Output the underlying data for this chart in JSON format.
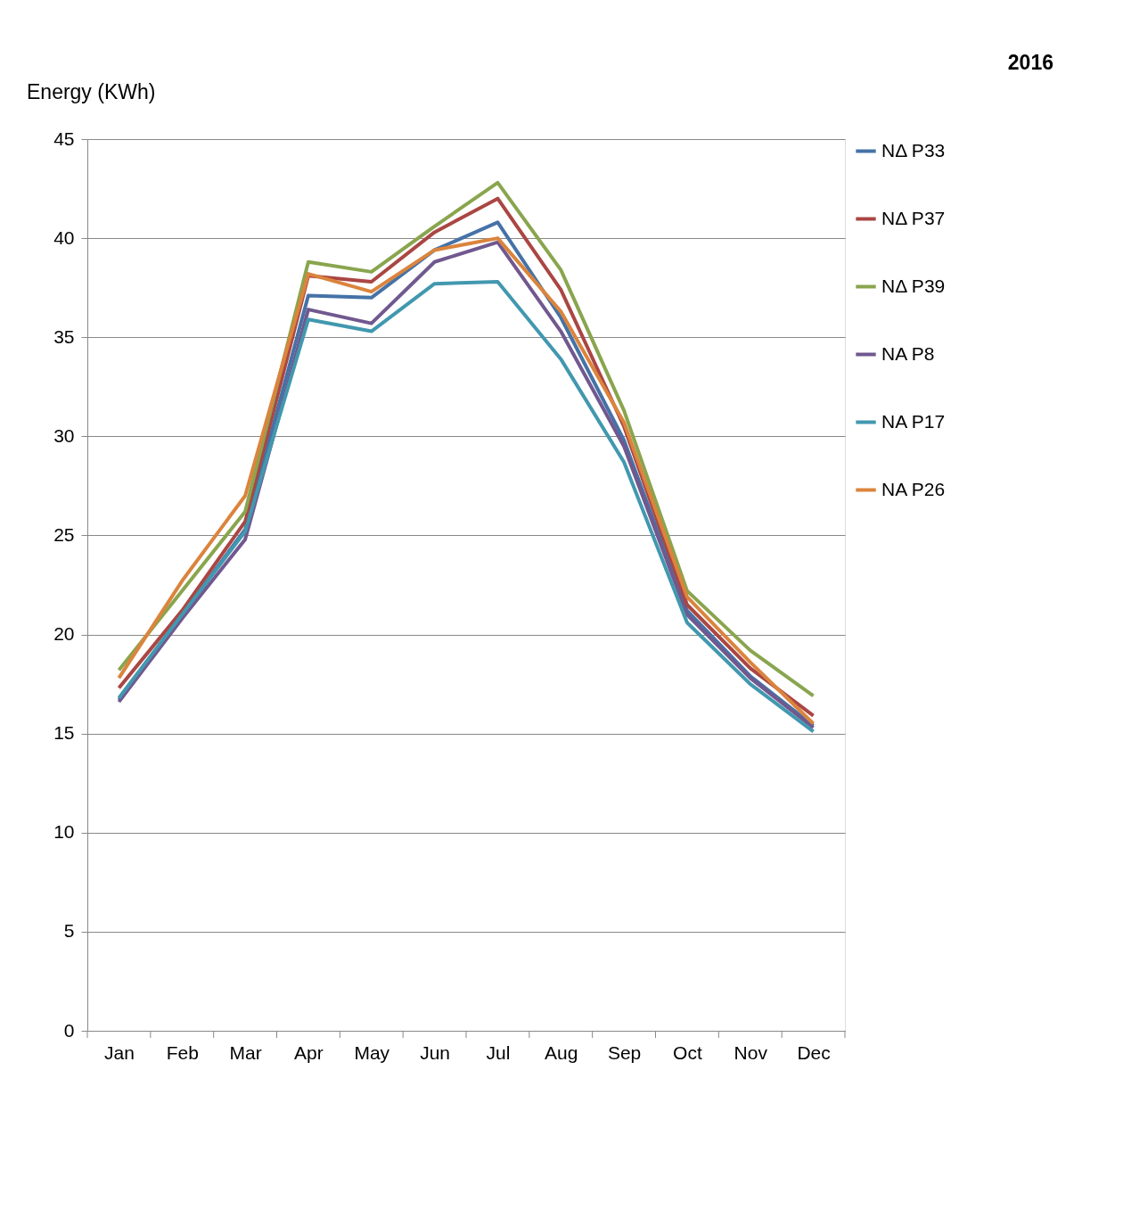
{
  "chart_data": {
    "type": "line",
    "title": "2016",
    "ylabel": "Energy (KWh)",
    "categories": [
      "Jan",
      "Feb",
      "Mar",
      "Apr",
      "May",
      "Jun",
      "Jul",
      "Aug",
      "Sep",
      "Oct",
      "Nov",
      "Dec"
    ],
    "ylim": [
      0,
      45
    ],
    "yticks": [
      0,
      5,
      10,
      15,
      20,
      25,
      30,
      35,
      40,
      45
    ],
    "grid": "y",
    "legend": "right",
    "marker": "none",
    "line_style": "solid",
    "series": [
      {
        "name": "NΔ P33",
        "color": "#4572a7",
        "values": [
          16.7,
          21.0,
          25.3,
          37.1,
          37.0,
          39.4,
          40.8,
          36.0,
          29.8,
          21.2,
          17.9,
          15.4
        ]
      },
      {
        "name": "NΔ P37",
        "color": "#aa4643",
        "values": [
          17.3,
          21.2,
          25.7,
          38.1,
          37.8,
          40.3,
          42.0,
          37.4,
          30.5,
          21.5,
          18.3,
          15.9
        ]
      },
      {
        "name": "NΔ P39",
        "color": "#89a54e",
        "values": [
          18.2,
          22.2,
          26.2,
          38.8,
          38.3,
          40.6,
          42.8,
          38.4,
          31.3,
          22.2,
          19.2,
          16.9
        ]
      },
      {
        "name": "NA P8",
        "color": "#71588f",
        "values": [
          16.6,
          20.8,
          24.8,
          36.4,
          35.7,
          38.8,
          39.8,
          35.3,
          29.5,
          21.0,
          17.8,
          15.3
        ]
      },
      {
        "name": "NA P17",
        "color": "#4198af",
        "values": [
          16.8,
          21.0,
          25.2,
          35.9,
          35.3,
          37.7,
          37.8,
          33.9,
          28.7,
          20.6,
          17.5,
          15.1
        ]
      },
      {
        "name": "NA P26",
        "color": "#db843d",
        "values": [
          17.8,
          22.7,
          27.0,
          38.2,
          37.3,
          39.4,
          40.0,
          36.3,
          30.7,
          21.9,
          18.6,
          15.5
        ]
      }
    ]
  }
}
